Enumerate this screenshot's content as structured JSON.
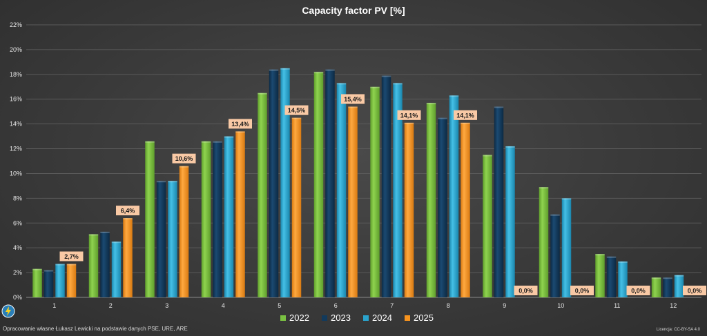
{
  "footer": {
    "source": "Opracowanie własne Łukasz Lewicki na podstawie danych PSE, URE, ARE",
    "license": "Licencja: CC-BY-SA 4.0"
  },
  "chart_data": {
    "type": "bar",
    "title": "Capacity factor PV [%]",
    "xlabel": "",
    "ylabel": "",
    "categories": [
      "1",
      "2",
      "3",
      "4",
      "5",
      "6",
      "7",
      "8",
      "9",
      "10",
      "11",
      "12"
    ],
    "ylim": [
      0,
      22
    ],
    "yticks": [
      "0%",
      "2%",
      "4%",
      "6%",
      "8%",
      "10%",
      "12%",
      "14%",
      "16%",
      "18%",
      "20%",
      "22%"
    ],
    "grid": true,
    "legend_position": "bottom",
    "series": [
      {
        "name": "2022",
        "color": "#7ac142",
        "values": [
          2.3,
          5.1,
          12.6,
          12.6,
          16.5,
          18.2,
          17.0,
          15.7,
          11.5,
          8.9,
          3.5,
          1.6
        ]
      },
      {
        "name": "2023",
        "color": "#123a5c",
        "values": [
          2.2,
          5.3,
          9.4,
          12.6,
          18.4,
          18.4,
          17.9,
          14.5,
          15.4,
          6.7,
          3.3,
          1.6
        ]
      },
      {
        "name": "2024",
        "color": "#2aa3cc",
        "values": [
          2.7,
          4.5,
          9.4,
          13.0,
          18.5,
          17.3,
          17.3,
          16.3,
          12.2,
          8.0,
          2.9,
          1.8
        ]
      },
      {
        "name": "2025",
        "color": "#f7931e",
        "values": [
          2.7,
          6.4,
          10.6,
          13.4,
          14.5,
          15.4,
          14.1,
          14.1,
          0.0,
          0.0,
          0.0,
          0.0
        ]
      }
    ],
    "data_labels": {
      "series": "2025",
      "labels": [
        "2,7%",
        "6,4%",
        "10,6%",
        "13,4%",
        "14,5%",
        "15,4%",
        "14,1%",
        "14,1%",
        "0,0%",
        "0,0%",
        "0,0%",
        "0,0%"
      ],
      "label_bg": "#f9c9a5"
    }
  }
}
